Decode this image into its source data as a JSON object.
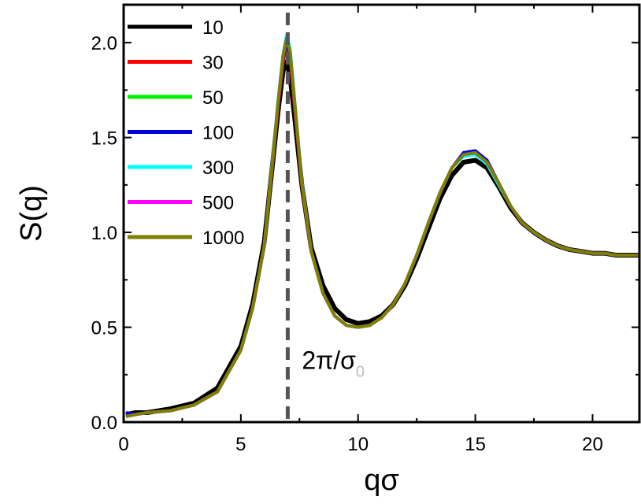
{
  "chart_data": {
    "type": "line",
    "xlabel": "qσ",
    "ylabel": "S(q)",
    "xlim": [
      0,
      22
    ],
    "ylim": [
      0,
      2.2
    ],
    "xticks": [
      0,
      5,
      10,
      15,
      20
    ],
    "yticks": [
      0.0,
      0.5,
      1.0,
      1.5,
      2.0
    ],
    "xtick_labels": [
      "0",
      "5",
      "10",
      "15",
      "20"
    ],
    "ytick_labels": [
      "0.0",
      "0.5",
      "1.0",
      "1.5",
      "2.0"
    ],
    "grid": false,
    "legend_position": "top-left",
    "annotation": {
      "main": "2π/σ",
      "sub": "0",
      "x": 7.0,
      "y": 0.28
    },
    "reference_line": {
      "x": 7.0,
      "style": "dashed",
      "color": "#555555"
    },
    "x": [
      0.1,
      0.5,
      1.0,
      2.0,
      3.0,
      4.0,
      5.0,
      5.5,
      6.0,
      6.3,
      6.6,
      6.8,
      6.95,
      7.1,
      7.3,
      7.6,
      8.0,
      8.5,
      9.0,
      9.5,
      10.0,
      10.5,
      11.0,
      11.5,
      12.0,
      12.5,
      13.0,
      13.5,
      14.0,
      14.5,
      15.0,
      15.5,
      16.0,
      16.5,
      17.0,
      17.5,
      18.0,
      18.5,
      19.0,
      19.5,
      20.0,
      20.5,
      21.0,
      21.5,
      22.0
    ],
    "series": [
      {
        "name": "10",
        "color": "#000000",
        "values": [
          0.04,
          0.05,
          0.05,
          0.07,
          0.1,
          0.18,
          0.4,
          0.62,
          0.95,
          1.3,
          1.65,
          1.85,
          1.9,
          1.82,
          1.6,
          1.25,
          0.92,
          0.72,
          0.6,
          0.54,
          0.52,
          0.53,
          0.56,
          0.62,
          0.72,
          0.86,
          1.02,
          1.18,
          1.3,
          1.37,
          1.38,
          1.34,
          1.24,
          1.13,
          1.05,
          1.0,
          0.96,
          0.93,
          0.91,
          0.9,
          0.89,
          0.89,
          0.88,
          0.88,
          0.88
        ]
      },
      {
        "name": "30",
        "color": "#ff0000",
        "values": [
          0.03,
          0.04,
          0.05,
          0.06,
          0.09,
          0.16,
          0.38,
          0.6,
          0.93,
          1.3,
          1.68,
          1.9,
          1.98,
          1.92,
          1.65,
          1.25,
          0.9,
          0.68,
          0.56,
          0.51,
          0.5,
          0.51,
          0.55,
          0.62,
          0.73,
          0.88,
          1.05,
          1.21,
          1.34,
          1.41,
          1.42,
          1.37,
          1.26,
          1.14,
          1.05,
          1.0,
          0.96,
          0.93,
          0.91,
          0.9,
          0.89,
          0.89,
          0.88,
          0.88,
          0.88
        ]
      },
      {
        "name": "50",
        "color": "#00ee00",
        "values": [
          0.03,
          0.04,
          0.05,
          0.06,
          0.09,
          0.16,
          0.38,
          0.6,
          0.93,
          1.31,
          1.7,
          1.93,
          2.03,
          1.96,
          1.68,
          1.26,
          0.9,
          0.68,
          0.56,
          0.51,
          0.5,
          0.51,
          0.55,
          0.62,
          0.73,
          0.88,
          1.05,
          1.21,
          1.34,
          1.41,
          1.42,
          1.37,
          1.26,
          1.14,
          1.05,
          1.0,
          0.96,
          0.93,
          0.91,
          0.9,
          0.89,
          0.89,
          0.88,
          0.88,
          0.88
        ]
      },
      {
        "name": "100",
        "color": "#0000dd",
        "values": [
          0.05,
          0.04,
          0.05,
          0.06,
          0.09,
          0.16,
          0.38,
          0.6,
          0.93,
          1.31,
          1.7,
          1.92,
          2.0,
          1.94,
          1.67,
          1.26,
          0.9,
          0.68,
          0.56,
          0.51,
          0.5,
          0.51,
          0.55,
          0.62,
          0.73,
          0.88,
          1.05,
          1.21,
          1.34,
          1.42,
          1.43,
          1.38,
          1.26,
          1.14,
          1.05,
          1.0,
          0.96,
          0.93,
          0.91,
          0.9,
          0.89,
          0.89,
          0.88,
          0.88,
          0.88
        ]
      },
      {
        "name": "300",
        "color": "#00ffff",
        "values": [
          0.03,
          0.04,
          0.05,
          0.06,
          0.09,
          0.16,
          0.38,
          0.6,
          0.93,
          1.32,
          1.71,
          1.94,
          2.04,
          1.97,
          1.69,
          1.27,
          0.9,
          0.68,
          0.56,
          0.51,
          0.5,
          0.51,
          0.55,
          0.62,
          0.73,
          0.88,
          1.05,
          1.21,
          1.34,
          1.4,
          1.41,
          1.36,
          1.25,
          1.14,
          1.05,
          1.0,
          0.96,
          0.93,
          0.91,
          0.9,
          0.89,
          0.89,
          0.88,
          0.88,
          0.88
        ]
      },
      {
        "name": "500",
        "color": "#ff00ff",
        "values": [
          0.03,
          0.04,
          0.05,
          0.06,
          0.09,
          0.16,
          0.38,
          0.6,
          0.93,
          1.31,
          1.7,
          1.93,
          2.02,
          1.95,
          1.68,
          1.26,
          0.9,
          0.68,
          0.56,
          0.51,
          0.5,
          0.51,
          0.55,
          0.62,
          0.73,
          0.88,
          1.05,
          1.21,
          1.34,
          1.41,
          1.42,
          1.37,
          1.26,
          1.14,
          1.05,
          1.0,
          0.96,
          0.93,
          0.91,
          0.9,
          0.89,
          0.89,
          0.88,
          0.88,
          0.88
        ]
      },
      {
        "name": "1000",
        "color": "#808000",
        "values": [
          0.03,
          0.04,
          0.05,
          0.06,
          0.09,
          0.16,
          0.38,
          0.6,
          0.93,
          1.31,
          1.7,
          1.93,
          2.02,
          1.95,
          1.68,
          1.26,
          0.9,
          0.68,
          0.56,
          0.51,
          0.5,
          0.51,
          0.55,
          0.62,
          0.73,
          0.88,
          1.05,
          1.21,
          1.34,
          1.41,
          1.42,
          1.37,
          1.26,
          1.14,
          1.05,
          1.0,
          0.96,
          0.93,
          0.91,
          0.9,
          0.89,
          0.89,
          0.88,
          0.88,
          0.88
        ]
      }
    ]
  }
}
